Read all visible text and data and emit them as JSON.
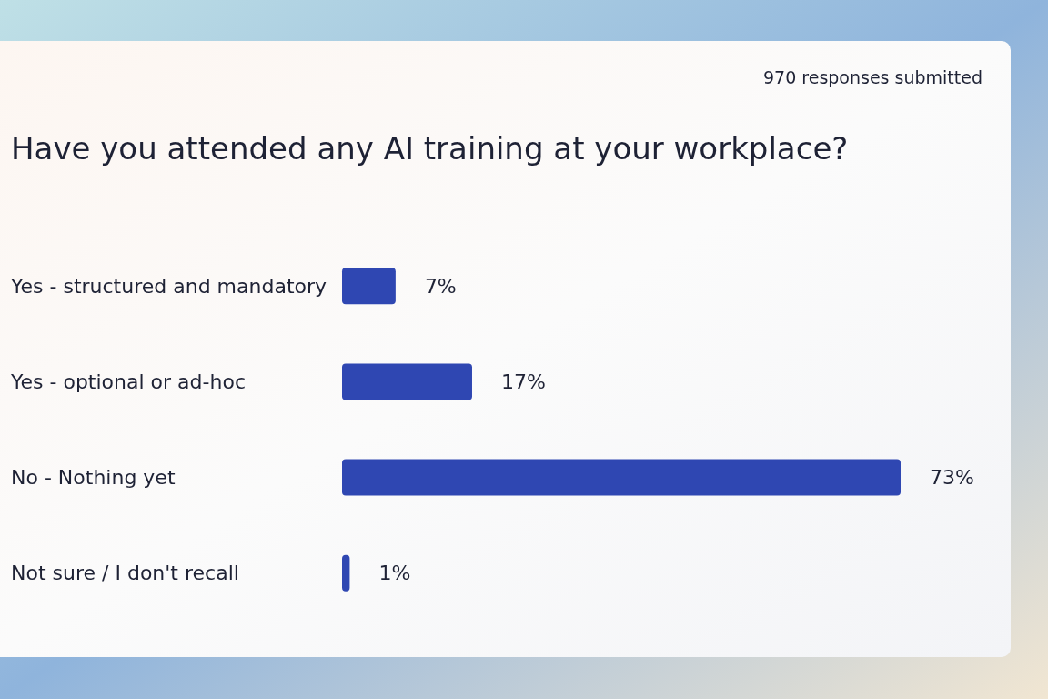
{
  "chart_data": {
    "type": "bar",
    "orientation": "horizontal",
    "title": "Have you attended any AI training at your workplace?",
    "annotations": [
      "970 responses submitted"
    ],
    "categories": [
      "Yes - structured and mandatory",
      "Yes - optional or ad-hoc",
      "No - Nothing yet",
      "Not sure / I don't recall"
    ],
    "values": [
      7,
      17,
      73,
      1
    ],
    "value_labels": [
      "7%",
      "17%",
      "73%",
      "1%"
    ],
    "color": "#2f47b2",
    "tick_labels": "y"
  }
}
